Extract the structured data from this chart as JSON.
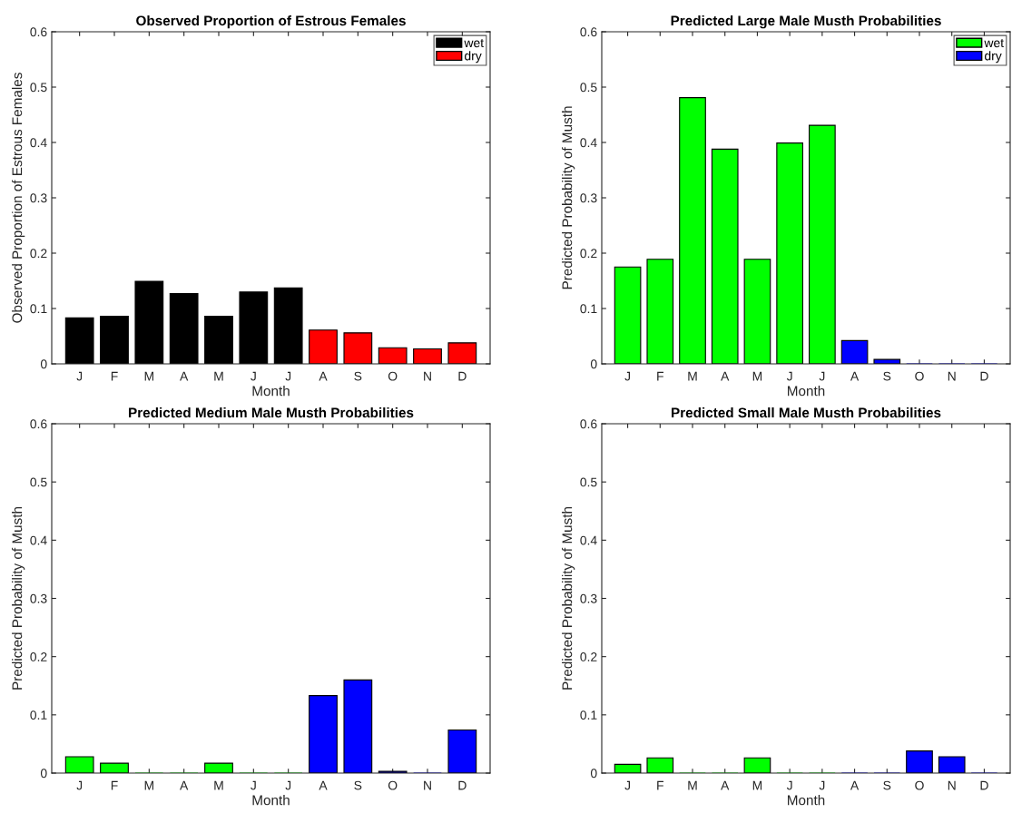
{
  "chart_data": [
    {
      "type": "bar",
      "title": "Observed Proportion of Estrous Females",
      "xlabel": "Month",
      "ylabel": "Observed Proportion of Estrous Females",
      "categories": [
        "J",
        "F",
        "M",
        "A",
        "M",
        "J",
        "J",
        "A",
        "S",
        "O",
        "N",
        "D"
      ],
      "series": [
        {
          "name": "wet",
          "color": "#000000",
          "values": [
            0.083,
            0.086,
            0.149,
            0.127,
            0.086,
            0.13,
            0.137,
            null,
            null,
            null,
            null,
            null
          ]
        },
        {
          "name": "dry",
          "color": "#ff0000",
          "values": [
            null,
            null,
            null,
            null,
            null,
            null,
            null,
            0.061,
            0.056,
            0.029,
            0.027,
            0.038
          ]
        }
      ],
      "ylim": [
        0,
        0.6
      ],
      "yticks": [
        0,
        0.1,
        0.2,
        0.3,
        0.4,
        0.5,
        0.6
      ],
      "legend": "top right",
      "grid": false
    },
    {
      "type": "bar",
      "title": "Predicted Large Male Musth Probabilities",
      "xlabel": "Month",
      "ylabel": "Predicted Probability of Musth",
      "categories": [
        "J",
        "F",
        "M",
        "A",
        "M",
        "J",
        "J",
        "A",
        "S",
        "O",
        "N",
        "D"
      ],
      "series": [
        {
          "name": "wet",
          "color": "#00ff00",
          "values": [
            0.175,
            0.189,
            0.481,
            0.388,
            0.189,
            0.399,
            0.431,
            null,
            null,
            null,
            null,
            null
          ]
        },
        {
          "name": "dry",
          "color": "#0000ff",
          "values": [
            null,
            null,
            null,
            null,
            null,
            null,
            null,
            0.042,
            0.008,
            0,
            0,
            0
          ]
        }
      ],
      "ylim": [
        0,
        0.6
      ],
      "yticks": [
        0,
        0.1,
        0.2,
        0.3,
        0.4,
        0.5,
        0.6
      ],
      "legend": "top right",
      "grid": false
    },
    {
      "type": "bar",
      "title": "Predicted Medium Male Musth Probabilities",
      "xlabel": "Month",
      "ylabel": "Predicted Probability of Musth",
      "categories": [
        "J",
        "F",
        "M",
        "A",
        "M",
        "J",
        "J",
        "A",
        "S",
        "O",
        "N",
        "D"
      ],
      "series": [
        {
          "color": "#00ff00",
          "values": [
            0.028,
            0.017,
            0,
            0,
            0.017,
            0,
            0,
            null,
            null,
            null,
            null,
            null
          ]
        },
        {
          "color": "#0000ff",
          "values": [
            null,
            null,
            null,
            null,
            null,
            null,
            null,
            0.133,
            0.16,
            0.003,
            0,
            0.074
          ]
        }
      ],
      "ylim": [
        0,
        0.6
      ],
      "yticks": [
        0,
        0.1,
        0.2,
        0.3,
        0.4,
        0.5,
        0.6
      ],
      "legend": false,
      "grid": false
    },
    {
      "type": "bar",
      "title": "Predicted Small Male Musth Probabilities",
      "xlabel": "Month",
      "ylabel": "Predicted Probability of Musth",
      "categories": [
        "J",
        "F",
        "M",
        "A",
        "M",
        "J",
        "J",
        "A",
        "S",
        "O",
        "N",
        "D"
      ],
      "series": [
        {
          "color": "#00ff00",
          "values": [
            0.015,
            0.026,
            0,
            0,
            0.026,
            0,
            0,
            null,
            null,
            null,
            null,
            null
          ]
        },
        {
          "color": "#0000ff",
          "values": [
            null,
            null,
            null,
            null,
            null,
            null,
            null,
            0,
            0,
            0.038,
            0.028,
            0
          ]
        }
      ],
      "ylim": [
        0,
        0.6
      ],
      "yticks": [
        0,
        0.1,
        0.2,
        0.3,
        0.4,
        0.5,
        0.6
      ],
      "legend": false,
      "grid": false
    }
  ]
}
